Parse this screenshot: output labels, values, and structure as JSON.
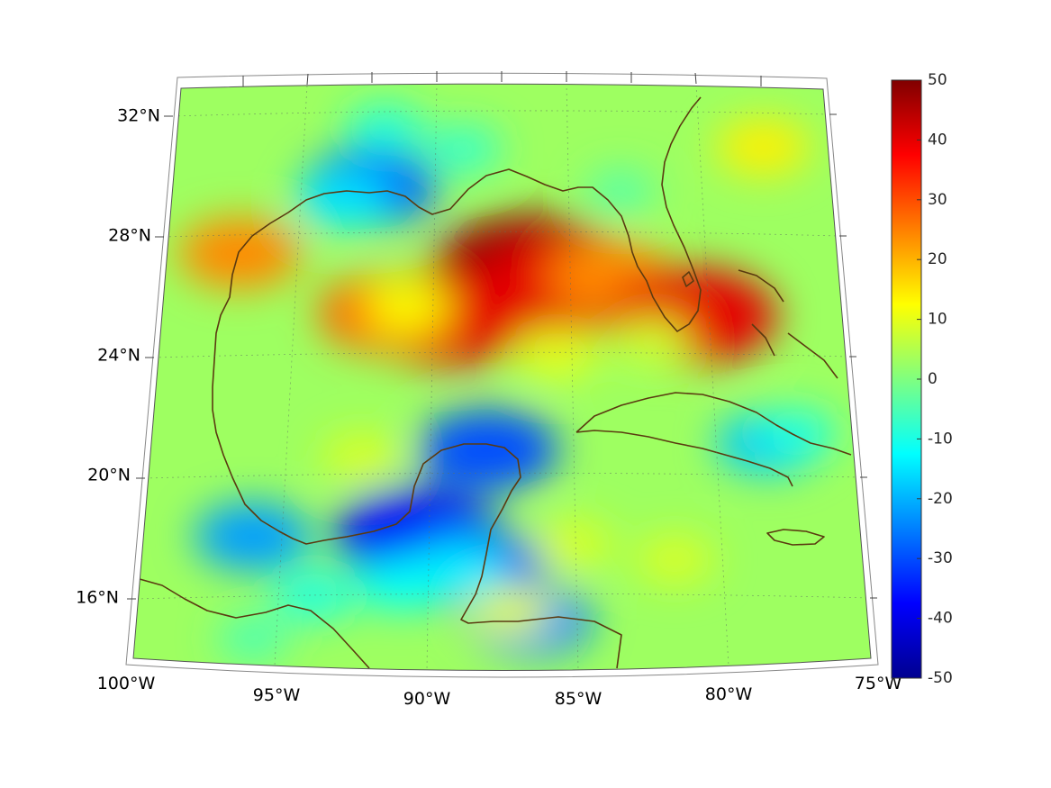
{
  "map": {
    "region": "Gulf of Mexico and Caribbean",
    "lon_range": [
      -100,
      -75
    ],
    "lat_range": [
      14,
      33
    ],
    "lat_ticks": [
      {
        "value": 32,
        "label": "32°N"
      },
      {
        "value": 28,
        "label": "28°N"
      },
      {
        "value": 24,
        "label": "24°N"
      },
      {
        "value": 20,
        "label": "20°N"
      },
      {
        "value": 16,
        "label": "16°N"
      }
    ],
    "lon_ticks": [
      {
        "value": -100,
        "label": "100°W"
      },
      {
        "value": -95,
        "label": "95°W"
      },
      {
        "value": -90,
        "label": "90°W"
      },
      {
        "value": -85,
        "label": "85°W"
      },
      {
        "value": -80,
        "label": "80°W"
      },
      {
        "value": -75,
        "label": "75°W"
      }
    ],
    "grid": true,
    "coastline_color": "#5a3a10",
    "colormap": "jet"
  },
  "colorbar": {
    "min": -50,
    "max": 50,
    "ticks": [
      "50",
      "40",
      "30",
      "20",
      "10",
      "0",
      "-10",
      "-20",
      "-30",
      "-40",
      "-50"
    ],
    "stops": [
      "#00008f",
      "#0000ff",
      "#00ffff",
      "#ffff00",
      "#ff0000",
      "#800000"
    ],
    "placement": "right"
  },
  "chart_data": {
    "type": "heatmap",
    "x_range": [
      -100,
      -75
    ],
    "y_range": [
      14,
      33
    ],
    "value_range": [
      -50,
      50
    ],
    "background_level": 3,
    "features": [
      {
        "lon": -86.5,
        "lat": 27.0,
        "value": 48
      },
      {
        "lon": -85.0,
        "lat": 26.6,
        "value": 40
      },
      {
        "lon": -89.5,
        "lat": 25.5,
        "value": 40
      },
      {
        "lon": -91.8,
        "lat": 25.6,
        "value": 28
      },
      {
        "lon": -83.5,
        "lat": 26.8,
        "value": 24
      },
      {
        "lon": -80.5,
        "lat": 25.5,
        "value": 40
      },
      {
        "lon": -97.3,
        "lat": 27.5,
        "value": 24
      },
      {
        "lon": -92.5,
        "lat": 29.6,
        "value": -28
      },
      {
        "lon": -93.5,
        "lat": 29.2,
        "value": -15
      },
      {
        "lon": -91.0,
        "lat": 25.8,
        "value": 12
      },
      {
        "lon": -90.5,
        "lat": 18.6,
        "value": -38
      },
      {
        "lon": -88.0,
        "lat": 21.3,
        "value": -30
      },
      {
        "lon": -88.5,
        "lat": 17.6,
        "value": -30
      },
      {
        "lon": -89.0,
        "lat": 17.5,
        "value": -14
      },
      {
        "lon": -96.2,
        "lat": 18.3,
        "value": -22
      },
      {
        "lon": -91.0,
        "lat": 17.0,
        "value": -12
      },
      {
        "lon": -94.0,
        "lat": 16.5,
        "value": -10
      },
      {
        "lon": -86.5,
        "lat": 15.9,
        "value": -24
      },
      {
        "lon": -87.2,
        "lat": 16.2,
        "value": 10
      },
      {
        "lon": -78.0,
        "lat": 21.3,
        "value": -18
      },
      {
        "lon": -77.0,
        "lat": 21.6,
        "value": -10
      },
      {
        "lon": -96.0,
        "lat": 15.0,
        "value": -6
      },
      {
        "lon": -77.5,
        "lat": 31.0,
        "value": 14
      },
      {
        "lon": -85.5,
        "lat": 24.3,
        "value": 10
      },
      {
        "lon": -82.0,
        "lat": 24.7,
        "value": 8
      },
      {
        "lon": -92.5,
        "lat": 21.0,
        "value": 9
      },
      {
        "lon": -85.0,
        "lat": 18.3,
        "value": 9
      },
      {
        "lon": -81.5,
        "lat": 17.7,
        "value": 9
      },
      {
        "lon": -89.0,
        "lat": 30.8,
        "value": -8
      },
      {
        "lon": -92.0,
        "lat": 31.5,
        "value": -9
      },
      {
        "lon": -83.0,
        "lat": 29.5,
        "value": -5
      }
    ]
  }
}
